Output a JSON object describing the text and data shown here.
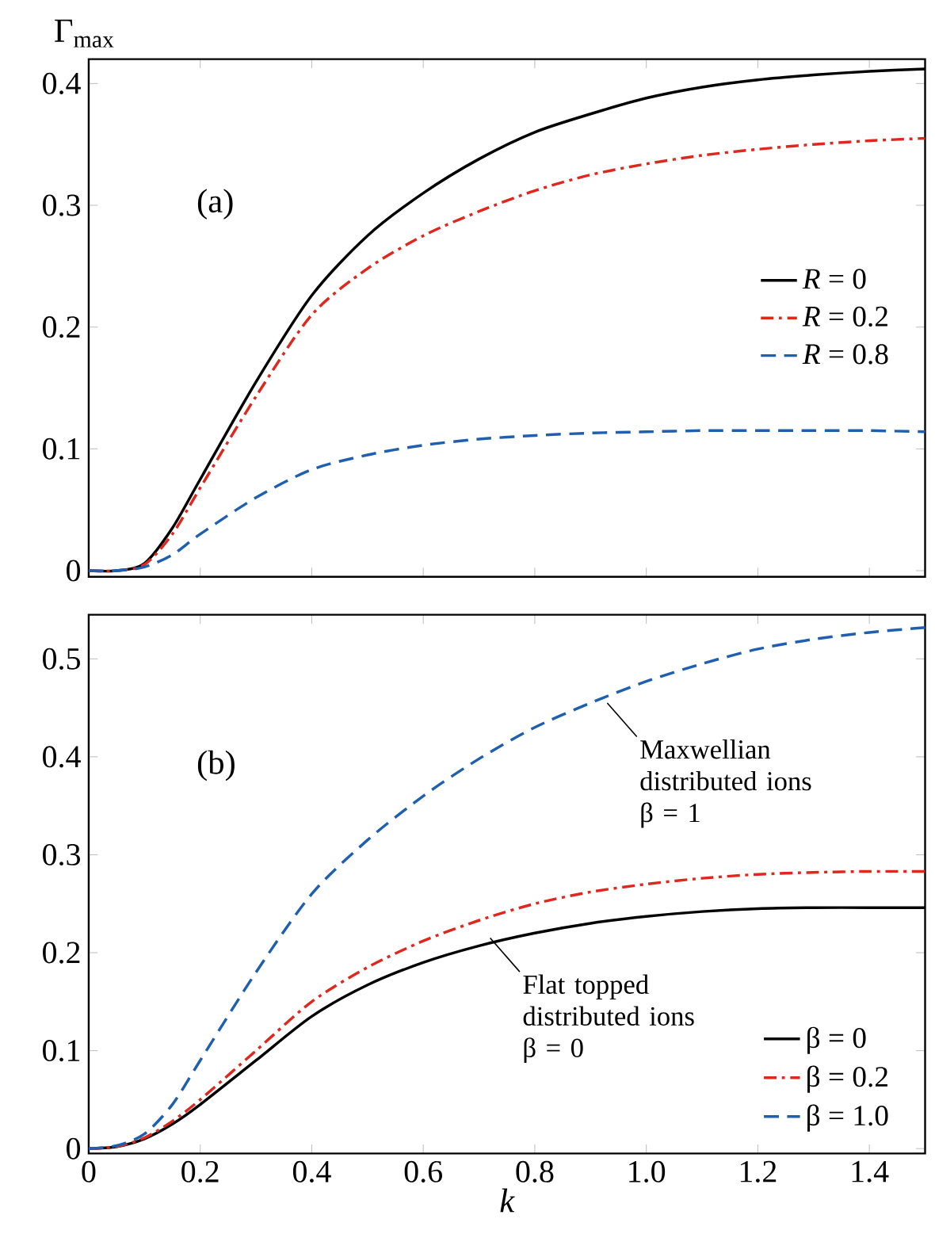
{
  "chart_data": [
    {
      "type": "line",
      "ylabel": "Γ$_{max}$",
      "tick_labels": "y",
      "legend": "right",
      "xlim": [
        0,
        1.5
      ],
      "ylim": [
        -0.005,
        0.42
      ],
      "yticks": [
        0,
        0.1,
        0.2,
        0.3,
        0.4
      ],
      "x": [
        0,
        0.05,
        0.1,
        0.15,
        0.2,
        0.3,
        0.4,
        0.5,
        0.6,
        0.7,
        0.8,
        0.9,
        1.0,
        1.1,
        1.2,
        1.3,
        1.4,
        1.5
      ],
      "annotations": [
        "(a)"
      ],
      "xticks": [
        0,
        0.2,
        0.4,
        0.6,
        0.8,
        1,
        1.2,
        1.4
      ],
      "series": [
        {
          "name": "*R* = 0",
          "color": "#000000",
          "line_style": "solid",
          "values": [
            0,
            0,
            0.006,
            0.035,
            0.075,
            0.155,
            0.226,
            0.275,
            0.31,
            0.338,
            0.36,
            0.375,
            0.388,
            0.397,
            0.403,
            0.407,
            0.41,
            0.412
          ]
        },
        {
          "name": "*R* = 0.2",
          "color": "#e0271e",
          "line_style": "dashdot",
          "values": [
            0,
            0,
            0.005,
            0.03,
            0.068,
            0.143,
            0.21,
            0.248,
            0.275,
            0.295,
            0.312,
            0.325,
            0.334,
            0.341,
            0.346,
            0.35,
            0.353,
            0.355
          ]
        },
        {
          "name": "*R* = 0.8",
          "color": "#1f5fb0",
          "line_style": "dashed",
          "values": [
            0,
            0,
            0.003,
            0.013,
            0.03,
            0.06,
            0.083,
            0.095,
            0.103,
            0.108,
            0.111,
            0.113,
            0.114,
            0.115,
            0.115,
            0.115,
            0.115,
            0.114
          ]
        }
      ]
    },
    {
      "type": "line",
      "xlabel": "k",
      "legend": "bottom right",
      "xlim": [
        0,
        1.5
      ],
      "ylim": [
        -0.005,
        0.545
      ],
      "xticks": [
        0,
        0.2,
        0.4,
        0.6,
        0.8,
        {
          "value": 1,
          "label": "1.0"
        },
        1.2,
        1.4
      ],
      "yticks": [
        0,
        0.1,
        0.2,
        0.3,
        0.4,
        0.5
      ],
      "x": [
        0,
        0.05,
        0.1,
        0.15,
        0.2,
        0.3,
        0.4,
        0.5,
        0.6,
        0.7,
        0.8,
        0.9,
        1.0,
        1.1,
        1.2,
        1.3,
        1.4,
        1.5
      ],
      "annotations": [
        "(b)",
        {
          "text": "Maxwellian distributed ions β = 1",
          "x": 0.93,
          "y": 0.455
        },
        {
          "text": "Flat topped distributed ions β = 0",
          "x": 0.72,
          "y": 0.215
        }
      ],
      "series": [
        {
          "name": "β = 0",
          "color": "#000000",
          "line_style": "solid",
          "values": [
            0,
            0.002,
            0.01,
            0.025,
            0.045,
            0.09,
            0.135,
            0.167,
            0.19,
            0.207,
            0.22,
            0.23,
            0.237,
            0.242,
            0.245,
            0.246,
            0.246,
            0.246
          ]
        },
        {
          "name": "β = 0.2",
          "color": "#e0271e",
          "line_style": "dashdot",
          "values": [
            0,
            0.002,
            0.011,
            0.028,
            0.05,
            0.1,
            0.15,
            0.185,
            0.212,
            0.233,
            0.25,
            0.262,
            0.27,
            0.276,
            0.28,
            0.282,
            0.283,
            0.283
          ]
        },
        {
          "name": "β = 1.0",
          "color": "#1f5fb0",
          "line_style": "dashed",
          "values": [
            0,
            0.003,
            0.015,
            0.045,
            0.09,
            0.18,
            0.26,
            0.315,
            0.36,
            0.398,
            0.43,
            0.455,
            0.477,
            0.495,
            0.51,
            0.52,
            0.527,
            0.532
          ]
        }
      ]
    }
  ]
}
